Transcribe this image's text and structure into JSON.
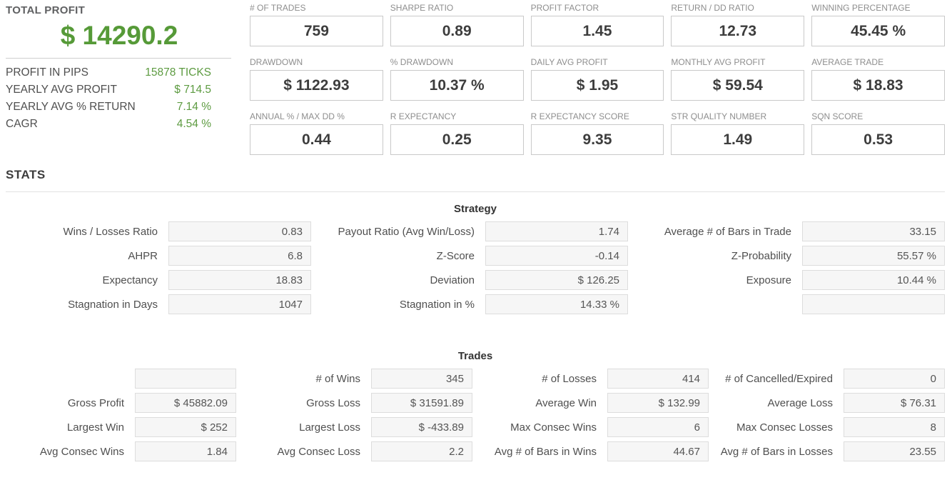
{
  "colors": {
    "accent_green": "#5b9b3d",
    "value_dark": "#3d3d3d",
    "box_bg": "#f6f6f6"
  },
  "summary": {
    "total_profit_label": "TOTAL PROFIT",
    "total_profit_value": "$ 14290.2",
    "rows": [
      {
        "label": "PROFIT IN PIPS",
        "value": "15878 TICKS"
      },
      {
        "label": "YEARLY AVG PROFIT",
        "value": "$ 714.5"
      },
      {
        "label": "YEARLY AVG % RETURN",
        "value": "7.14 %"
      },
      {
        "label": "CAGR",
        "value": "4.54 %"
      }
    ]
  },
  "metrics": {
    "rows": [
      [
        {
          "label": "# OF TRADES",
          "value": "759"
        },
        {
          "label": "SHARPE RATIO",
          "value": "0.89"
        },
        {
          "label": "PROFIT FACTOR",
          "value": "1.45"
        },
        {
          "label": "RETURN / DD RATIO",
          "value": "12.73"
        },
        {
          "label": "WINNING PERCENTAGE",
          "value": "45.45 %"
        }
      ],
      [
        {
          "label": "DRAWDOWN",
          "value": "$ 1122.93"
        },
        {
          "label": "% DRAWDOWN",
          "value": "10.37 %"
        },
        {
          "label": "DAILY AVG PROFIT",
          "value": "$ 1.95"
        },
        {
          "label": "MONTHLY AVG PROFIT",
          "value": "$ 59.54"
        },
        {
          "label": "AVERAGE TRADE",
          "value": "$ 18.83"
        }
      ],
      [
        {
          "label": "ANNUAL % / MAX DD %",
          "value": "0.44"
        },
        {
          "label": "R EXPECTANCY",
          "value": "0.25"
        },
        {
          "label": "R EXPECTANCY SCORE",
          "value": "9.35"
        },
        {
          "label": "STR QUALITY NUMBER",
          "value": "1.49"
        },
        {
          "label": "SQN SCORE",
          "value": "0.53"
        }
      ]
    ]
  },
  "stats": {
    "heading": "STATS",
    "strategy": {
      "title": "Strategy",
      "rows": [
        [
          {
            "label": "Wins / Losses Ratio",
            "value": "0.83"
          },
          {
            "label": "Payout Ratio (Avg Win/Loss)",
            "value": "1.74"
          },
          {
            "label": "Average # of Bars in Trade",
            "value": "33.15"
          }
        ],
        [
          {
            "label": "AHPR",
            "value": "6.8"
          },
          {
            "label": "Z-Score",
            "value": "-0.14"
          },
          {
            "label": "Z-Probability",
            "value": "55.57 %"
          }
        ],
        [
          {
            "label": "Expectancy",
            "value": "18.83"
          },
          {
            "label": "Deviation",
            "value": "$ 126.25"
          },
          {
            "label": "Exposure",
            "value": "10.44 %"
          }
        ],
        [
          {
            "label": "Stagnation in Days",
            "value": "1047"
          },
          {
            "label": "Stagnation in %",
            "value": "14.33 %"
          },
          {
            "label": "",
            "value": ""
          }
        ]
      ]
    },
    "trades": {
      "title": "Trades",
      "rows": [
        [
          {
            "label": "",
            "value": ""
          },
          {
            "label": "# of Wins",
            "value": "345"
          },
          {
            "label": "# of Losses",
            "value": "414"
          },
          {
            "label": "# of Cancelled/Expired",
            "value": "0"
          }
        ],
        [
          {
            "label": "Gross Profit",
            "value": "$ 45882.09"
          },
          {
            "label": "Gross Loss",
            "value": "$ 31591.89"
          },
          {
            "label": "Average Win",
            "value": "$ 132.99"
          },
          {
            "label": "Average Loss",
            "value": "$ 76.31"
          }
        ],
        [
          {
            "label": "Largest Win",
            "value": "$ 252"
          },
          {
            "label": "Largest Loss",
            "value": "$ -433.89"
          },
          {
            "label": "Max Consec Wins",
            "value": "6"
          },
          {
            "label": "Max Consec Losses",
            "value": "8"
          }
        ],
        [
          {
            "label": "Avg Consec Wins",
            "value": "1.84"
          },
          {
            "label": "Avg Consec Loss",
            "value": "2.2"
          },
          {
            "label": "Avg # of Bars in Wins",
            "value": "44.67"
          },
          {
            "label": "Avg # of Bars in Losses",
            "value": "23.55"
          }
        ]
      ]
    }
  }
}
